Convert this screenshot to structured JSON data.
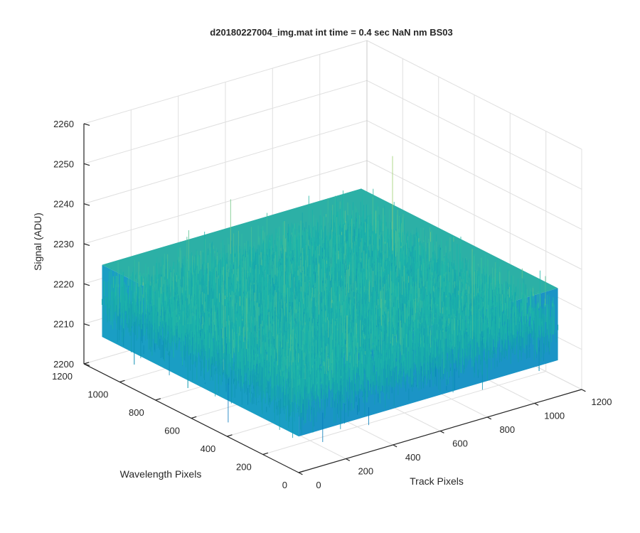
{
  "chart_data": {
    "type": "surface",
    "title": "d20180227004_img.mat int time = 0.4 sec  NaN nm BS03",
    "xlabel": "Track Pixels",
    "ylabel": "Wavelength Pixels",
    "zlabel": "Signal (ADU)",
    "x_ticks": [
      "0",
      "200",
      "400",
      "600",
      "800",
      "1000",
      "1200"
    ],
    "y_ticks": [
      "0",
      "200",
      "400",
      "600",
      "800",
      "1000",
      "1200"
    ],
    "z_ticks": [
      "2200",
      "2210",
      "2220",
      "2230",
      "2240",
      "2250",
      "2260"
    ],
    "xlim": [
      0,
      1200
    ],
    "ylim": [
      0,
      1200
    ],
    "zlim": [
      2200,
      2260
    ],
    "data_extent": {
      "x": [
        1,
        1100
      ],
      "y": [
        1,
        1100
      ]
    },
    "signal_mean": 2218,
    "signal_range_typical": [
      2200,
      2240
    ],
    "grid": true,
    "colormap": "parula",
    "colors": {
      "low": "#0072bd",
      "mid": "#1fb7a8",
      "high": "#e6dc55"
    }
  }
}
